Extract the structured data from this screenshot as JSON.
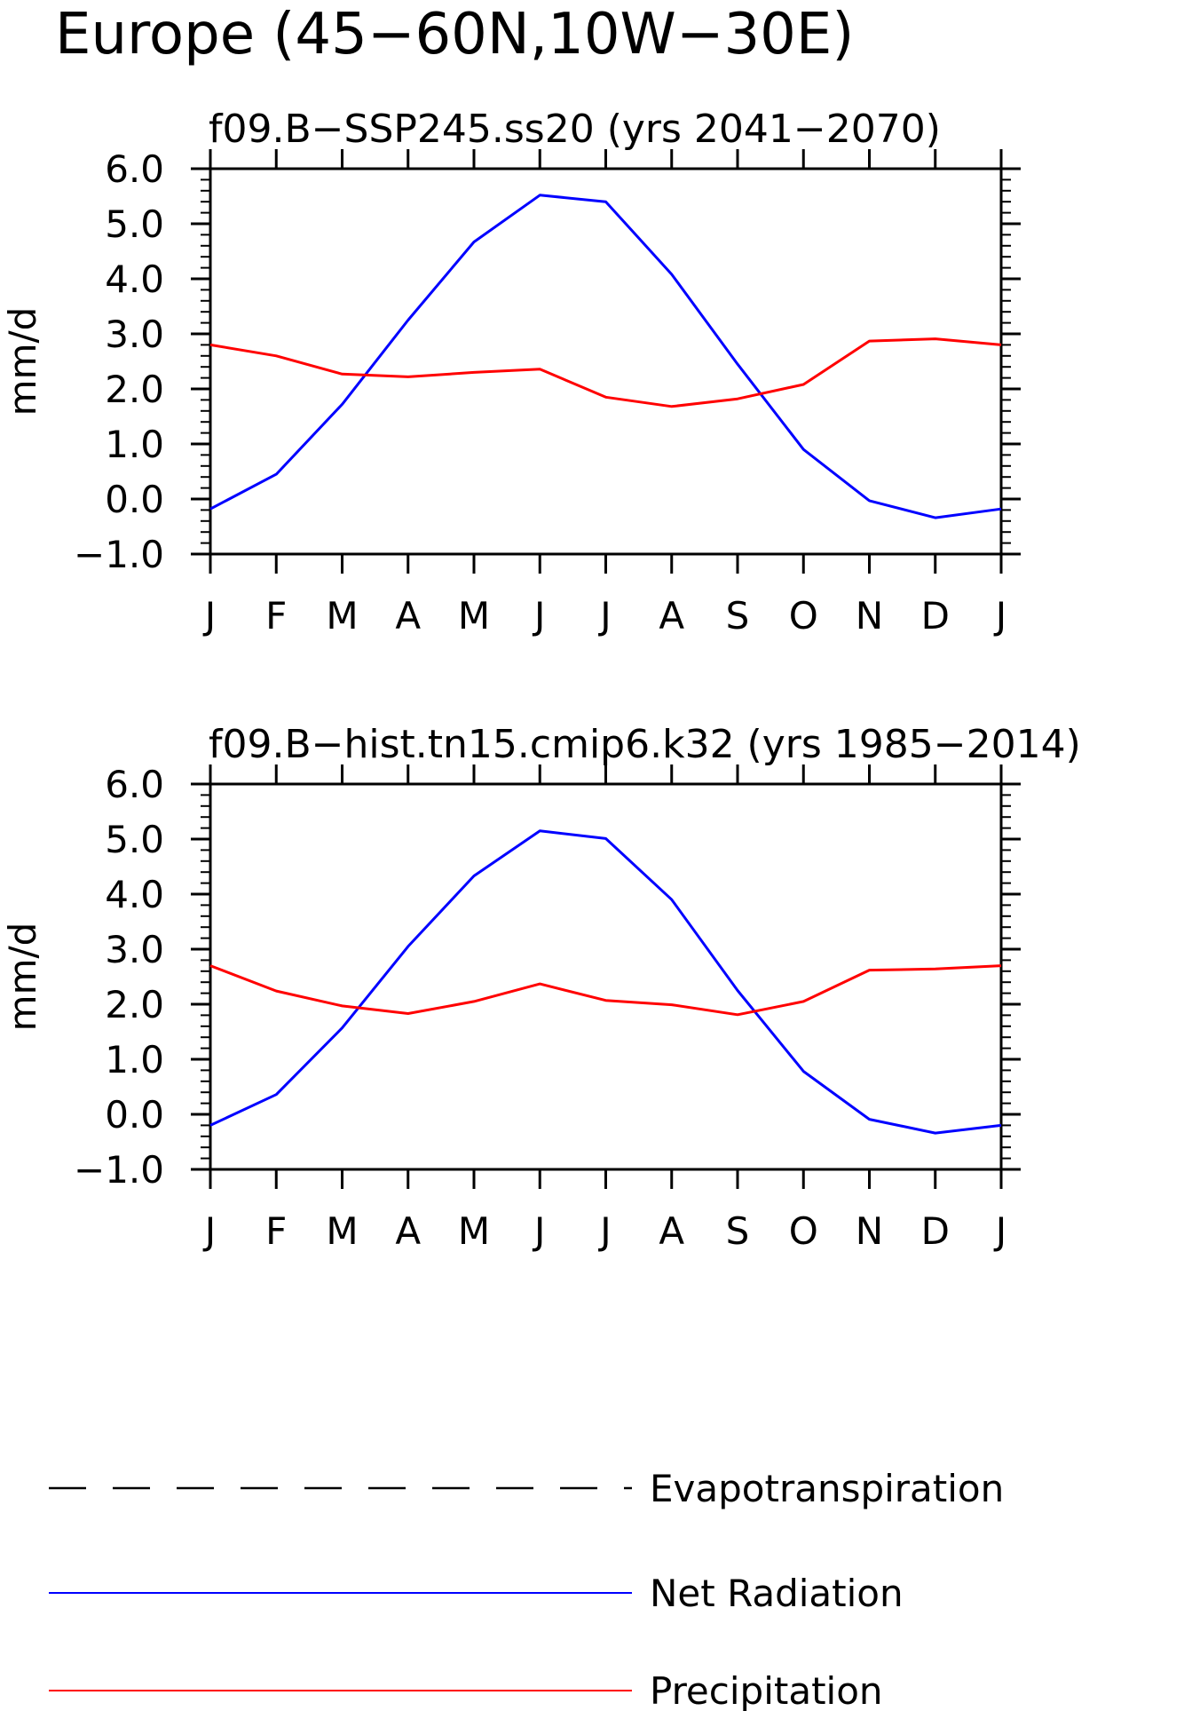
{
  "figure": {
    "title": "Europe (45−60N,10W−30E)"
  },
  "colors": {
    "net_radiation": "#0000ff",
    "precipitation": "#ff0000",
    "evapotranspiration": "#000000"
  },
  "legend": {
    "items": [
      {
        "label": "Evapotranspiration",
        "style": "dashed",
        "color": "#000000"
      },
      {
        "label": "Net Radiation",
        "style": "solid",
        "color": "#0000ff"
      },
      {
        "label": "Precipitation",
        "style": "solid",
        "color": "#ff0000"
      }
    ]
  },
  "chart_data": [
    {
      "type": "line",
      "title": "f09.B−SSP245.ss20 (yrs 2041−2070)",
      "xlabel": "",
      "ylabel": "mm/d",
      "categories": [
        "J",
        "F",
        "M",
        "A",
        "M",
        "J",
        "J",
        "A",
        "S",
        "O",
        "N",
        "D",
        "J"
      ],
      "ylim": [
        -1.0,
        6.0
      ],
      "yticks": [
        -1.0,
        0.0,
        1.0,
        2.0,
        3.0,
        4.0,
        5.0,
        6.0
      ],
      "ytick_labels": [
        "−1.0",
        "0.0",
        "1.0",
        "2.0",
        "3.0",
        "4.0",
        "5.0",
        "6.0"
      ],
      "grid": false,
      "series": [
        {
          "name": "Net Radiation",
          "color": "#0000ff",
          "values": [
            -0.18,
            0.45,
            1.72,
            3.25,
            4.67,
            5.52,
            5.4,
            4.08,
            2.45,
            0.9,
            -0.03,
            -0.34,
            -0.18
          ]
        },
        {
          "name": "Precipitation",
          "color": "#ff0000",
          "values": [
            2.8,
            2.6,
            2.27,
            2.22,
            2.3,
            2.36,
            1.85,
            1.68,
            1.82,
            2.08,
            2.87,
            2.91,
            2.8
          ]
        }
      ]
    },
    {
      "type": "line",
      "title": "f09.B−hist.tn15.cmip6.k32 (yrs 1985−2014)",
      "xlabel": "",
      "ylabel": "mm/d",
      "categories": [
        "J",
        "F",
        "M",
        "A",
        "M",
        "J",
        "J",
        "A",
        "S",
        "O",
        "N",
        "D",
        "J"
      ],
      "ylim": [
        -1.0,
        6.0
      ],
      "yticks": [
        -1.0,
        0.0,
        1.0,
        2.0,
        3.0,
        4.0,
        5.0,
        6.0
      ],
      "ytick_labels": [
        "−1.0",
        "0.0",
        "1.0",
        "2.0",
        "3.0",
        "4.0",
        "5.0",
        "6.0"
      ],
      "grid": false,
      "series": [
        {
          "name": "Net Radiation",
          "color": "#0000ff",
          "values": [
            -0.2,
            0.36,
            1.57,
            3.05,
            4.33,
            5.15,
            5.01,
            3.9,
            2.25,
            0.78,
            -0.09,
            -0.34,
            -0.2
          ]
        },
        {
          "name": "Precipitation",
          "color": "#ff0000",
          "values": [
            2.7,
            2.24,
            1.97,
            1.83,
            2.05,
            2.37,
            2.07,
            1.99,
            1.81,
            2.05,
            2.62,
            2.64,
            2.7
          ]
        }
      ]
    }
  ]
}
